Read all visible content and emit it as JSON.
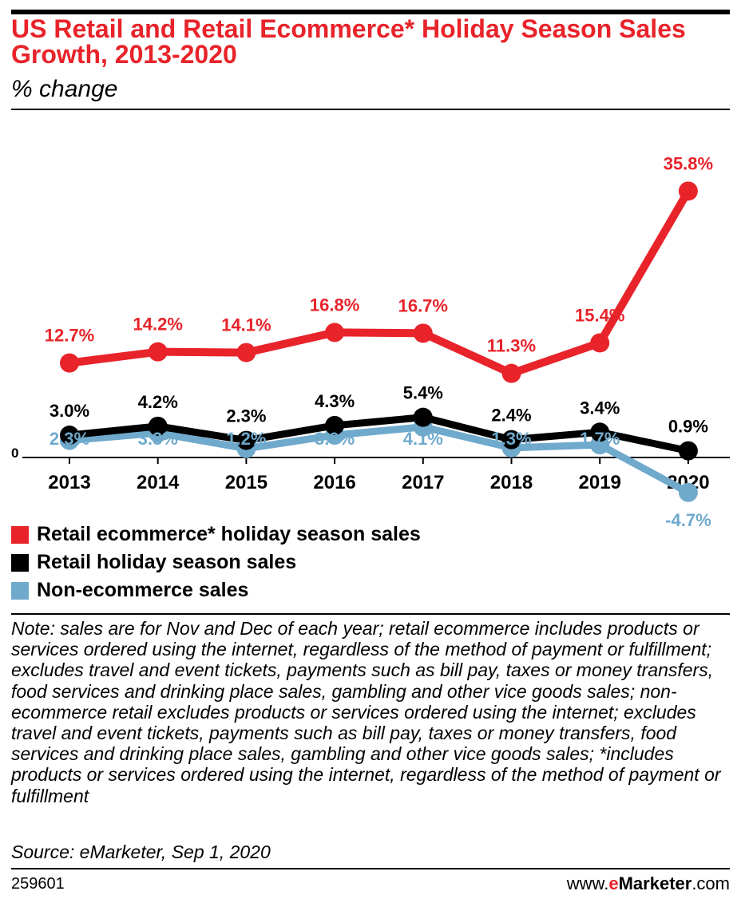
{
  "header": {
    "title": "US Retail and Retail Ecommerce* Holiday Season Sales Growth, 2013-2020",
    "subtitle": "% change"
  },
  "chart_data": {
    "type": "line",
    "title": "US Retail and Retail Ecommerce* Holiday Season Sales Growth, 2013-2020",
    "subtitle": "% change",
    "x": [
      "2013",
      "2014",
      "2015",
      "2016",
      "2017",
      "2018",
      "2019",
      "2020"
    ],
    "zero_label": "0",
    "series": [
      {
        "name": "Retail ecommerce* holiday season sales",
        "color": "#e8232a",
        "values": [
          12.7,
          14.2,
          14.1,
          16.8,
          16.7,
          11.3,
          15.4,
          35.8
        ],
        "labels": [
          "12.7%",
          "14.2%",
          "14.1%",
          "16.8%",
          "16.7%",
          "11.3%",
          "15.4%",
          "35.8%"
        ]
      },
      {
        "name": "Retail holiday season sales",
        "color": "#000000",
        "values": [
          3.0,
          4.2,
          2.3,
          4.3,
          5.4,
          2.4,
          3.4,
          0.9
        ],
        "labels": [
          "3.0%",
          "4.2%",
          "2.3%",
          "4.3%",
          "5.4%",
          "2.4%",
          "3.4%",
          "0.9%"
        ]
      },
      {
        "name": "Non-ecommerce sales",
        "color": "#6fa9cc",
        "values": [
          2.3,
          3.3,
          1.2,
          3.0,
          4.1,
          1.3,
          1.7,
          -4.7
        ],
        "labels": [
          "2.3%",
          "3.3%",
          "1.2%",
          "3.0%",
          "4.1%",
          "1.3%",
          "1.7%",
          "-4.7%"
        ]
      }
    ],
    "grid": false,
    "legend_position": "bottom-left"
  },
  "note": "Note: sales are for Nov and Dec of each year; retail ecommerce includes products or services ordered using the internet, regardless of the method of payment or fulfillment; excludes travel and event tickets, payments such as bill pay, taxes or money transfers, food services and drinking place sales, gambling and other vice goods sales; non-ecommerce retail excludes products or services ordered using the internet; excludes travel and event tickets, payments such as bill pay, taxes or money transfers, food services and drinking place sales, gambling and other vice goods sales; *includes products or services ordered using the internet, regardless of the method of payment or fulfillment",
  "source": "Source: eMarketer, Sep 1, 2020",
  "footer": {
    "chart_id": "259601",
    "brand_prefix": "www.",
    "brand_e": "e",
    "brand_marketer": "Marketer",
    "brand_suffix": ".com"
  }
}
